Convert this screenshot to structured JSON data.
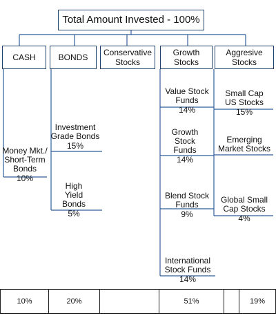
{
  "title": "Total Amount Invested - 100%",
  "categories": [
    {
      "key": "cash",
      "label": "CASH"
    },
    {
      "key": "bonds",
      "label": "BONDS"
    },
    {
      "key": "conservative",
      "label": "Conservative Stocks"
    },
    {
      "key": "growth",
      "label": "Growth Stocks"
    },
    {
      "key": "aggressive",
      "label": "Aggresive Stocks"
    }
  ],
  "items": {
    "money_market": {
      "name": "Money Mkt./ Short-Term Bonds",
      "pct": "10%"
    },
    "investment_grade": {
      "name": "Investment Grade Bonds",
      "pct": "15%"
    },
    "high_yield": {
      "name": "High Yield Bonds",
      "pct": "5%"
    },
    "value_funds": {
      "name": "Value Stock Funds",
      "pct": "14%"
    },
    "growth_funds": {
      "name": "Growth Stock Funds",
      "pct": "14%"
    },
    "blend_funds": {
      "name": "Blend Stock Funds",
      "pct": "9%"
    },
    "international_funds": {
      "name": "International Stock Funds",
      "pct": "14%"
    },
    "small_cap_us": {
      "name": "Small Cap US Stocks",
      "pct": "15%"
    },
    "emerging_market": {
      "name": "Emerging Market Stocks",
      "pct": ""
    },
    "global_small_cap": {
      "name": "Global Small Cap Stocks",
      "pct": "4%"
    }
  },
  "totals": [
    "10%",
    "20%",
    "",
    "51%",
    "",
    "19%"
  ],
  "colors": {
    "box_border": "#1f3f6b",
    "connector": "#2f5d9b",
    "text": "#111111"
  }
}
